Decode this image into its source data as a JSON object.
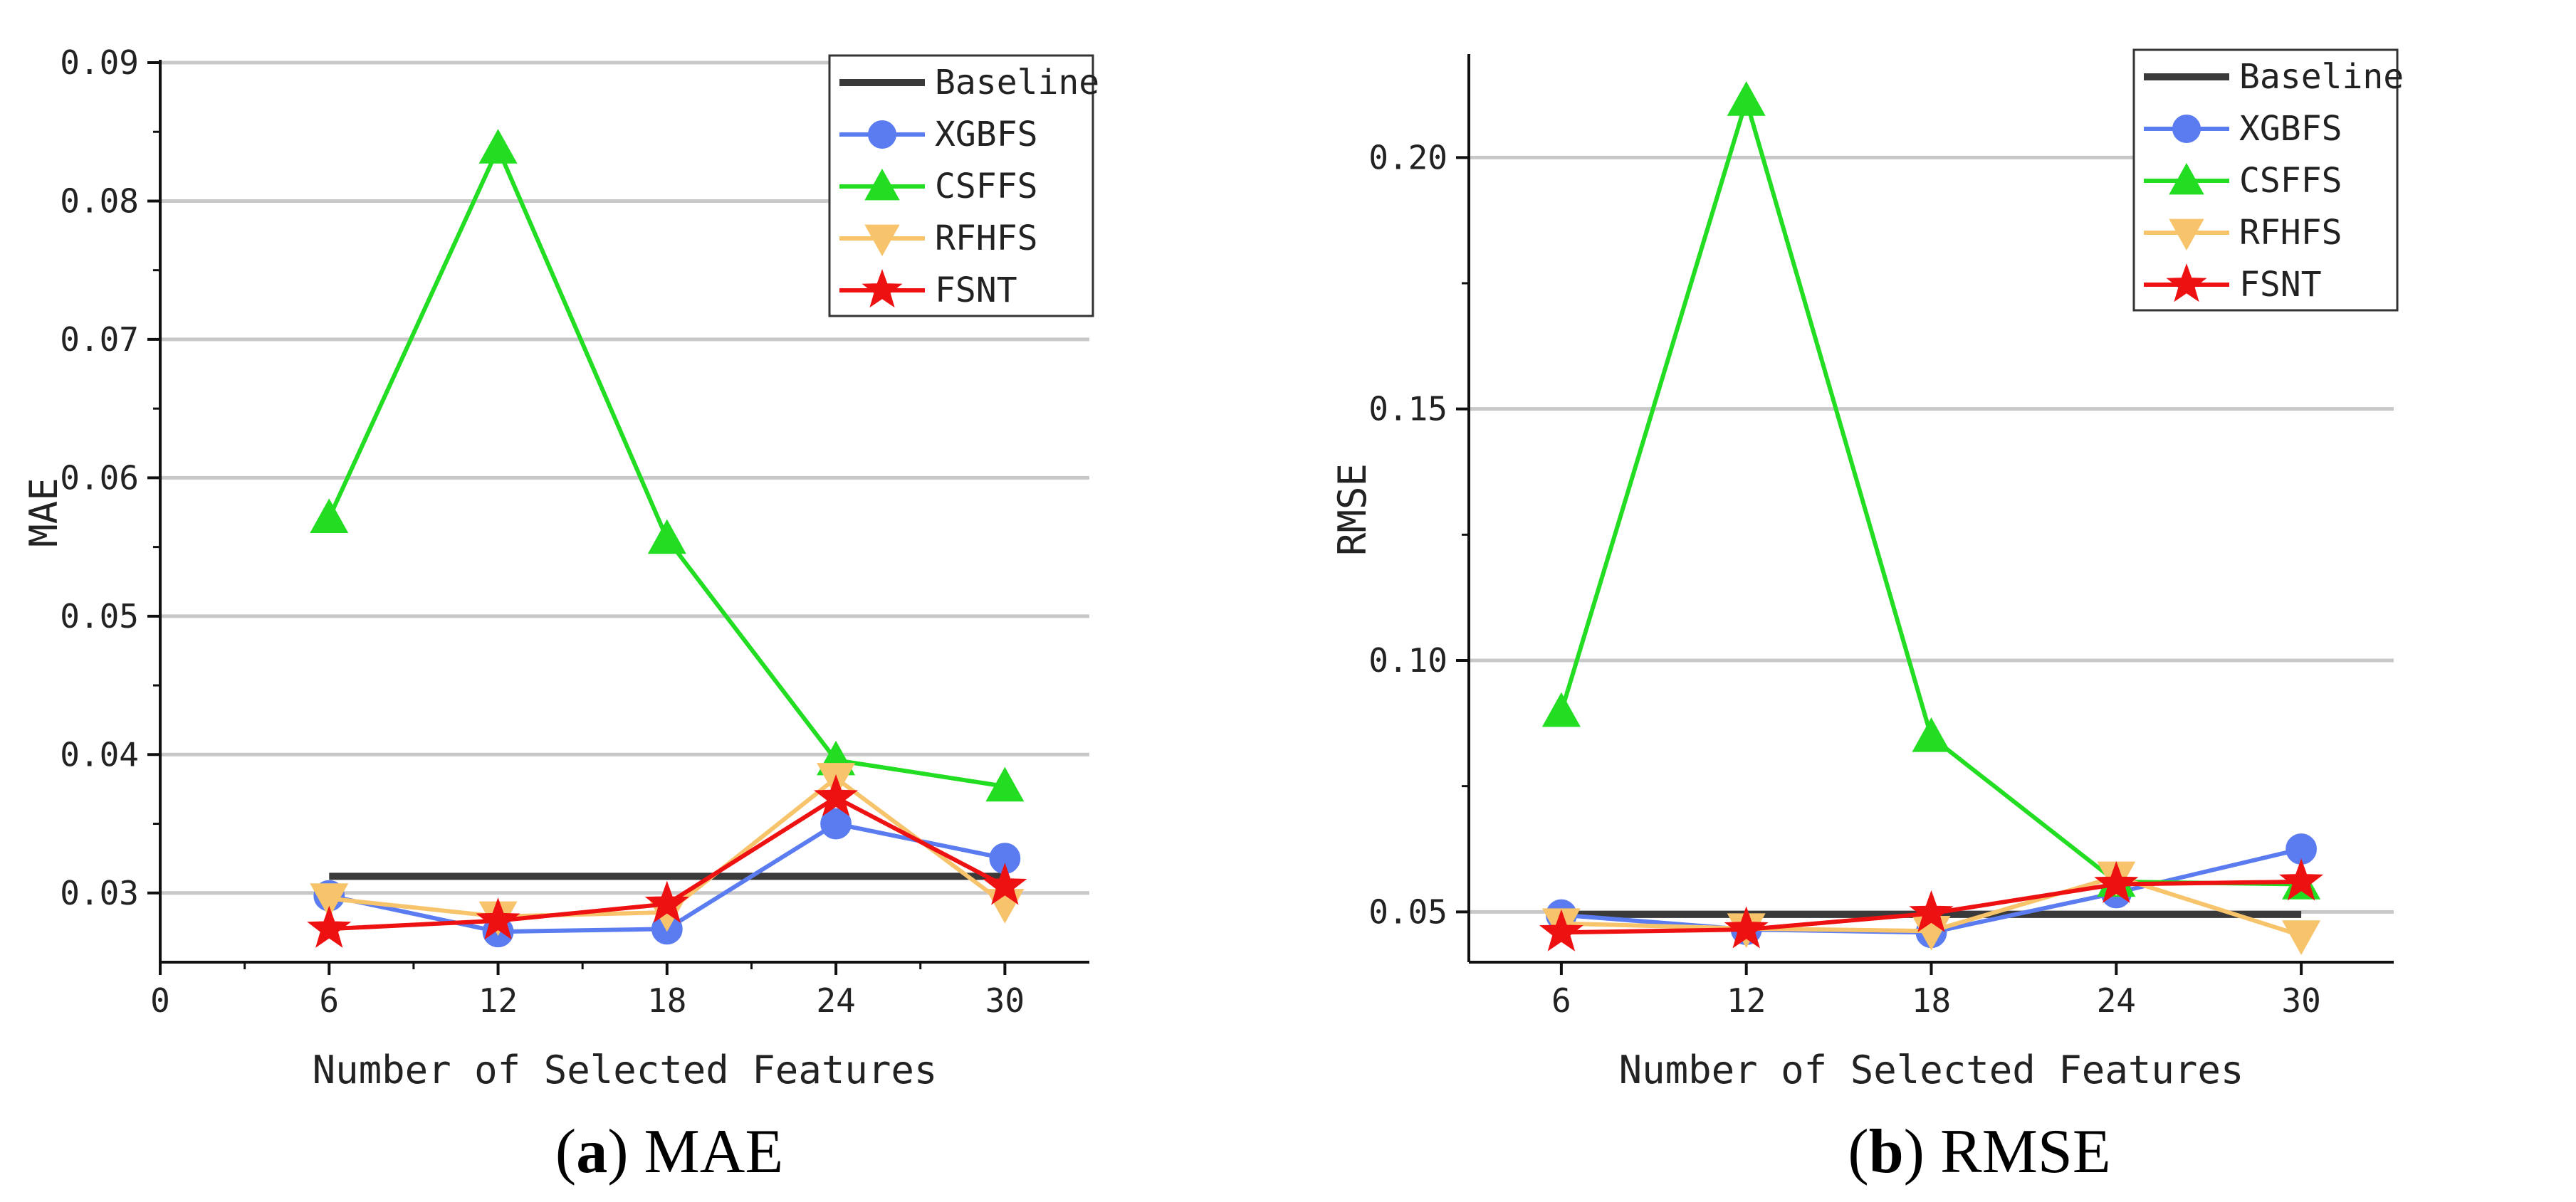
{
  "chart_data": [
    {
      "id": "mae",
      "type": "line",
      "title": "",
      "xlabel": "Number of Selected Features",
      "ylabel": "MAE",
      "caption_letter": "a",
      "caption_text": "MAE",
      "xlim": [
        0,
        33
      ],
      "ylim": [
        0.025,
        0.09
      ],
      "x_ticks": [
        0,
        6,
        12,
        18,
        24,
        30
      ],
      "x_tick_labels": [
        "0",
        "6",
        "12",
        "18",
        "24",
        "30"
      ],
      "y_ticks": [
        0.03,
        0.04,
        0.05,
        0.06,
        0.07,
        0.08,
        0.09
      ],
      "y_tick_labels": [
        "0.03",
        "0.04",
        "0.05",
        "0.06",
        "0.07",
        "0.08",
        "0.09"
      ],
      "grid": true,
      "legend_position": "top-right",
      "categories": [
        6,
        12,
        18,
        24,
        30
      ],
      "series": [
        {
          "name": "Baseline",
          "color": "#3a3a3a",
          "marker": "none",
          "values": [
            0.0312,
            0.0312,
            0.0312,
            0.0312,
            0.0312
          ]
        },
        {
          "name": "XGBFS",
          "color": "#5b7cf0",
          "marker": "circle",
          "values": [
            0.0298,
            0.0272,
            0.0274,
            0.035,
            0.0325
          ]
        },
        {
          "name": "CSFFS",
          "color": "#22dd22",
          "marker": "triangle-up",
          "values": [
            0.0571,
            0.0838,
            0.0556,
            0.0396,
            0.0377
          ]
        },
        {
          "name": "RFHFS",
          "color": "#f7c46c",
          "marker": "triangle-down",
          "values": [
            0.0296,
            0.0283,
            0.0286,
            0.0383,
            0.0292
          ]
        },
        {
          "name": "FSNT",
          "color": "#ee1111",
          "marker": "star",
          "values": [
            0.0274,
            0.028,
            0.0292,
            0.0369,
            0.0305
          ]
        }
      ]
    },
    {
      "id": "rmse",
      "type": "line",
      "title": "",
      "xlabel": "Number of Selected Features",
      "ylabel": "RMSE",
      "caption_letter": "b",
      "caption_text": "RMSE",
      "xlim": [
        3,
        33
      ],
      "ylim": [
        0.04,
        0.22
      ],
      "x_ticks": [
        6,
        12,
        18,
        24,
        30
      ],
      "x_tick_labels": [
        "6",
        "12",
        "18",
        "24",
        "30"
      ],
      "y_ticks": [
        0.05,
        0.1,
        0.15,
        0.2
      ],
      "y_tick_labels": [
        "0.05",
        "0.10",
        "0.15",
        "0.20"
      ],
      "grid": true,
      "legend_position": "top-right",
      "categories": [
        6,
        12,
        18,
        24,
        30
      ],
      "series": [
        {
          "name": "Baseline",
          "color": "#3a3a3a",
          "marker": "none",
          "values": [
            0.0495,
            0.0495,
            0.0495,
            0.0495,
            0.0495
          ]
        },
        {
          "name": "XGBFS",
          "color": "#5b7cf0",
          "marker": "circle",
          "values": [
            0.0494,
            0.0465,
            0.0459,
            0.0538,
            0.0625
          ]
        },
        {
          "name": "CSFFS",
          "color": "#22dd22",
          "marker": "triangle-up",
          "values": [
            0.0898,
            0.2113,
            0.0848,
            0.056,
            0.0555
          ]
        },
        {
          "name": "RFHFS",
          "color": "#f7c46c",
          "marker": "triangle-down",
          "values": [
            0.0477,
            0.0467,
            0.0462,
            0.057,
            0.0453
          ]
        },
        {
          "name": "FSNT",
          "color": "#ee1111",
          "marker": "star",
          "values": [
            0.0459,
            0.0465,
            0.0497,
            0.0555,
            0.056
          ]
        }
      ]
    }
  ]
}
